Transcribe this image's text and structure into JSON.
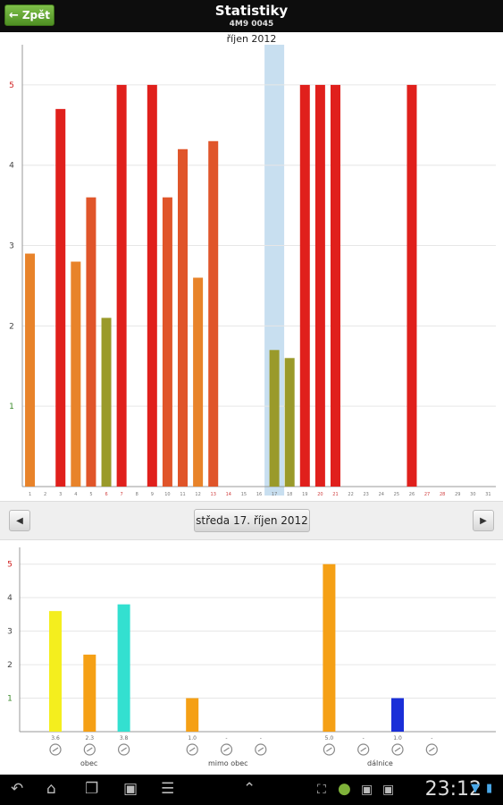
{
  "header": {
    "back_label": "Zpět",
    "title": "Statistiky",
    "subtitle": "4M9 0045"
  },
  "top_chart": {
    "month_label": "říjen 2012"
  },
  "nav": {
    "date_label": "středa 17. říjen 2012",
    "prev_icon": "triangle-left-icon",
    "next_icon": "triangle-right-icon"
  },
  "categories": {
    "obec": "obec",
    "mimo_obec": "mimo obec",
    "dalnice": "dálnice"
  },
  "status": {
    "time": "23:12"
  },
  "chart_data": [
    {
      "type": "bar",
      "title": "říjen 2012",
      "ylim": [
        0,
        5.5
      ],
      "yticks": [
        1,
        2,
        3,
        4,
        5
      ],
      "grid": true,
      "selected_day": 17,
      "days": [
        1,
        2,
        3,
        4,
        5,
        6,
        7,
        8,
        9,
        10,
        11,
        12,
        13,
        14,
        15,
        16,
        17,
        18,
        19,
        20,
        21,
        22,
        23,
        24,
        25,
        26,
        27,
        28,
        29,
        30,
        31
      ],
      "bars": [
        {
          "day": 1,
          "value": 2.9,
          "color": "#e8832a"
        },
        {
          "day": 3,
          "value": 4.7,
          "color": "#e0201c"
        },
        {
          "day": 4,
          "value": 2.8,
          "color": "#e8832a"
        },
        {
          "day": 5,
          "value": 3.6,
          "color": "#e0552a"
        },
        {
          "day": 6,
          "value": 2.1,
          "color": "#9a9a2a"
        },
        {
          "day": 7,
          "value": 5.0,
          "color": "#e0201c"
        },
        {
          "day": 9,
          "value": 5.0,
          "color": "#e0201c"
        },
        {
          "day": 10,
          "value": 3.6,
          "color": "#e0552a"
        },
        {
          "day": 11,
          "value": 4.2,
          "color": "#e0552a"
        },
        {
          "day": 12,
          "value": 2.6,
          "color": "#e8832a"
        },
        {
          "day": 13,
          "value": 4.3,
          "color": "#e0552a"
        },
        {
          "day": 17,
          "value": 1.7,
          "color": "#9a9a2a"
        },
        {
          "day": 18,
          "value": 1.6,
          "color": "#9a9a2a"
        },
        {
          "day": 19,
          "value": 5.0,
          "color": "#e0201c"
        },
        {
          "day": 20,
          "value": 5.0,
          "color": "#e0201c"
        },
        {
          "day": 21,
          "value": 5.0,
          "color": "#e0201c"
        },
        {
          "day": 26,
          "value": 5.0,
          "color": "#e0201c"
        }
      ]
    },
    {
      "type": "bar",
      "ylim": [
        0,
        5.5
      ],
      "yticks": [
        1,
        2,
        3,
        4,
        5
      ],
      "grid": true,
      "slots": [
        {
          "slot": 0,
          "value": 3.6,
          "label": "3.6",
          "color": "#f4ee1e",
          "icon": "gauge-icon"
        },
        {
          "slot": 1,
          "value": 2.3,
          "label": "2.3",
          "color": "#f5a015",
          "icon": "acceleration-icon"
        },
        {
          "slot": 2,
          "value": 3.8,
          "label": "3.8",
          "color": "#33e0d0",
          "icon": "braking-icon"
        },
        {
          "slot": 4,
          "value": 1.0,
          "label": "1.0",
          "color": "#f5a015",
          "icon": "acceleration-icon"
        },
        {
          "slot": 5,
          "value": null,
          "label": "-",
          "color": "",
          "icon": "braking-icon"
        },
        {
          "slot": 6,
          "value": null,
          "label": "-",
          "color": "",
          "icon": "curve-icon"
        },
        {
          "slot": 8,
          "value": 5.0,
          "label": "5.0",
          "color": "#f5a015",
          "icon": "acceleration-icon"
        },
        {
          "slot": 9,
          "value": null,
          "label": "-",
          "color": "",
          "icon": "braking-icon"
        },
        {
          "slot": 10,
          "value": 1.0,
          "label": "1.0",
          "color": "#1a2fd8",
          "icon": "curve-icon"
        },
        {
          "slot": 11,
          "value": null,
          "label": "-",
          "color": "",
          "icon": "steering-icon"
        }
      ]
    }
  ]
}
